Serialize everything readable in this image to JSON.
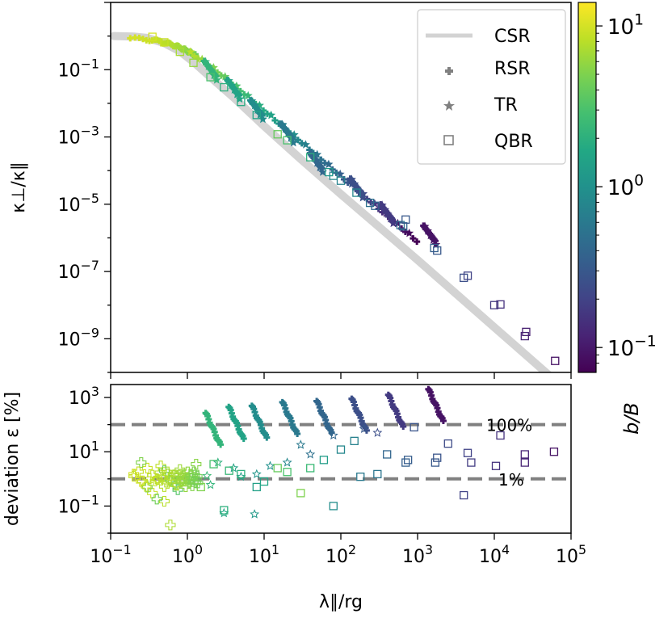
{
  "chart_data": [
    {
      "type": "scatter",
      "xscale": "log",
      "yscale": "log",
      "xlim": [
        0.1,
        100000
      ],
      "ylim": [
        1e-10,
        10
      ],
      "ylabel": "κ⊥/κ∥",
      "yticks": [
        {
          "value": 0.1,
          "base": "10",
          "exp": "−1"
        },
        {
          "value": 0.001,
          "base": "10",
          "exp": "−3"
        },
        {
          "value": 1e-05,
          "base": "10",
          "exp": "−5"
        },
        {
          "value": 1e-07,
          "base": "10",
          "exp": "−7"
        },
        {
          "value": 1e-09,
          "base": "10",
          "exp": "−9"
        }
      ],
      "legend": {
        "position": "top-right",
        "entries": [
          {
            "label": "CSR",
            "marker": "line",
            "color": "#d3d3d3"
          },
          {
            "label": "RSR",
            "marker": "plus",
            "color": "#808080"
          },
          {
            "label": "TR",
            "marker": "star",
            "color": "#808080"
          },
          {
            "label": "QBR",
            "marker": "square",
            "color": "#808080"
          }
        ]
      },
      "series": [
        {
          "name": "CSR",
          "kind": "line",
          "color": "#d3d3d3",
          "points": [
            [
              0.11,
              1.0
            ],
            [
              0.2,
              0.97
            ],
            [
              0.3,
              0.88
            ],
            [
              0.5,
              0.62
            ],
            [
              0.8,
              0.35
            ],
            [
              1.2,
              0.17
            ],
            [
              2,
              0.06
            ],
            [
              4,
              0.015
            ],
            [
              10,
              0.0021
            ],
            [
              30,
              0.00022
            ],
            [
              100,
              2e-05
            ],
            [
              1000,
              2.2e-07
            ],
            [
              10000,
              2.2e-09
            ],
            [
              100000,
              2.2e-11
            ]
          ]
        },
        {
          "name": "QBR",
          "kind": "scatter",
          "marker": "square",
          "points": [
            {
              "x": 0.35,
              "y": 0.95,
              "b": 10
            },
            {
              "x": 0.5,
              "y": 0.65,
              "b": 9
            },
            {
              "x": 0.8,
              "y": 0.34,
              "b": 7
            },
            {
              "x": 1.2,
              "y": 0.16,
              "b": 6
            },
            {
              "x": 2.0,
              "y": 0.06,
              "b": 3
            },
            {
              "x": 3.0,
              "y": 0.03,
              "b": 2
            },
            {
              "x": 5.0,
              "y": 0.011,
              "b": 1.8
            },
            {
              "x": 8.0,
              "y": 0.0045,
              "b": 1.5
            },
            {
              "x": 15,
              "y": 0.0012,
              "b": 4
            },
            {
              "x": 20,
              "y": 0.0008,
              "b": 3
            },
            {
              "x": 40,
              "y": 0.00025,
              "b": 2
            },
            {
              "x": 70,
              "y": 9e-05,
              "b": 1.2
            },
            {
              "x": 80,
              "y": 7e-05,
              "b": 0.8
            },
            {
              "x": 100,
              "y": 5e-05,
              "b": 0.7
            },
            {
              "x": 160,
              "y": 2.2e-05,
              "b": 0.8
            },
            {
              "x": 240,
              "y": 1.1e-05,
              "b": 0.5
            },
            {
              "x": 280,
              "y": 9e-06,
              "b": 0.4
            },
            {
              "x": 600,
              "y": 2.4e-06,
              "b": 0.5
            },
            {
              "x": 650,
              "y": 2.2e-06,
              "b": 0.4
            },
            {
              "x": 700,
              "y": 3.5e-06,
              "b": 0.3
            },
            {
              "x": 1650,
              "y": 5e-07,
              "b": 0.35
            },
            {
              "x": 1800,
              "y": 4.2e-07,
              "b": 0.3
            },
            {
              "x": 4000,
              "y": 6.5e-08,
              "b": 0.25
            },
            {
              "x": 4500,
              "y": 7.5e-08,
              "b": 0.2
            },
            {
              "x": 10000,
              "y": 1e-08,
              "b": 0.17
            },
            {
              "x": 12000,
              "y": 1.05e-08,
              "b": 0.15
            },
            {
              "x": 25000,
              "y": 1.2e-09,
              "b": 0.12
            },
            {
              "x": 26000,
              "y": 1.6e-09,
              "b": 0.11
            },
            {
              "x": 62000,
              "y": 2.2e-10,
              "b": 0.09
            }
          ]
        },
        {
          "name": "RSR",
          "kind": "cluster",
          "marker": "plus",
          "clusters": [
            {
              "x": 2.5,
              "y": 0.22,
              "b": 2.2
            },
            {
              "x": 5,
              "y": 0.06,
              "b": 1.5
            },
            {
              "x": 10,
              "y": 0.015,
              "b": 0.9
            },
            {
              "x": 25,
              "y": 0.003,
              "b": 0.6
            },
            {
              "x": 60,
              "y": 0.0004,
              "b": 0.4
            },
            {
              "x": 200,
              "y": 7e-05,
              "b": 0.25
            },
            {
              "x": 500,
              "y": 1.2e-05,
              "b": 0.17
            },
            {
              "x": 1800,
              "y": 2.8e-06,
              "b": 0.09
            }
          ]
        }
      ]
    },
    {
      "type": "scatter",
      "xscale": "log",
      "yscale": "log",
      "xlim": [
        0.1,
        100000
      ],
      "ylim": [
        0.01,
        3000
      ],
      "xlabel": "λ∥/rg",
      "ylabel": "deviation ε [%]",
      "xticks": [
        {
          "value": 0.1,
          "base": "10",
          "exp": "−1"
        },
        {
          "value": 1,
          "base": "10",
          "exp": "0"
        },
        {
          "value": 10,
          "base": "10",
          "exp": "1"
        },
        {
          "value": 100,
          "base": "10",
          "exp": "2"
        },
        {
          "value": 1000,
          "base": "10",
          "exp": "3"
        },
        {
          "value": 10000,
          "base": "10",
          "exp": "4"
        },
        {
          "value": 100000,
          "base": "10",
          "exp": "5"
        }
      ],
      "yticks": [
        {
          "value": 1000,
          "base": "10",
          "exp": "3"
        },
        {
          "value": 10,
          "base": "10",
          "exp": "1"
        },
        {
          "value": 0.1,
          "base": "10",
          "exp": "−1"
        }
      ],
      "hlines": [
        {
          "value": 100,
          "label": "100%"
        },
        {
          "value": 1,
          "label": "1%"
        }
      ],
      "qbr": [
        {
          "x": 0.8,
          "y": 0.9,
          "b": 6
        },
        {
          "x": 1.2,
          "y": 1.2,
          "b": 5
        },
        {
          "x": 1.5,
          "y": 0.5,
          "b": 5
        },
        {
          "x": 2.2,
          "y": 3.5,
          "b": 3
        },
        {
          "x": 3.0,
          "y": 0.07,
          "b": 2
        },
        {
          "x": 3.5,
          "y": 2.0,
          "b": 2.4
        },
        {
          "x": 5,
          "y": 1.5,
          "b": 2
        },
        {
          "x": 8,
          "y": 0.5,
          "b": 1.4
        },
        {
          "x": 10,
          "y": 0.8,
          "b": 1.6
        },
        {
          "x": 15,
          "y": 2.5,
          "b": 4
        },
        {
          "x": 20,
          "y": 1.8,
          "b": 3
        },
        {
          "x": 30,
          "y": 0.3,
          "b": 5
        },
        {
          "x": 40,
          "y": 2.5,
          "b": 2.5
        },
        {
          "x": 60,
          "y": 5,
          "b": 1.3
        },
        {
          "x": 80,
          "y": 0.1,
          "b": 0.9
        },
        {
          "x": 100,
          "y": 12,
          "b": 0.8
        },
        {
          "x": 150,
          "y": 25,
          "b": 0.7
        },
        {
          "x": 180,
          "y": 1.2,
          "b": 0.6
        },
        {
          "x": 300,
          "y": 1.5,
          "b": 0.55
        },
        {
          "x": 400,
          "y": 8,
          "b": 0.4
        },
        {
          "x": 700,
          "y": 4,
          "b": 0.35
        },
        {
          "x": 750,
          "y": 5,
          "b": 0.33
        },
        {
          "x": 900,
          "y": 80,
          "b": 0.28
        },
        {
          "x": 1700,
          "y": 4,
          "b": 0.3
        },
        {
          "x": 1800,
          "y": 6,
          "b": 0.28
        },
        {
          "x": 2500,
          "y": 20,
          "b": 0.23
        },
        {
          "x": 4000,
          "y": 0.25,
          "b": 0.2
        },
        {
          "x": 4500,
          "y": 9,
          "b": 0.2
        },
        {
          "x": 5000,
          "y": 4,
          "b": 0.18
        },
        {
          "x": 10500,
          "y": 3,
          "b": 0.15
        },
        {
          "x": 12000,
          "y": 40,
          "b": 0.15
        },
        {
          "x": 25000,
          "y": 4,
          "b": 0.12
        },
        {
          "x": 25000,
          "y": 8,
          "b": 0.12
        },
        {
          "x": 60000,
          "y": 10,
          "b": 0.09
        }
      ],
      "tr": [
        {
          "x": 1.8,
          "y": 1.3,
          "b": 2.5
        },
        {
          "x": 2.0,
          "y": 0.6,
          "b": 2.2
        },
        {
          "x": 2.5,
          "y": 4,
          "b": 2
        },
        {
          "x": 3.0,
          "y": 0.055,
          "b": 1.6
        },
        {
          "x": 4.0,
          "y": 2.5,
          "b": 1.5
        },
        {
          "x": 5.0,
          "y": 1.2,
          "b": 1.4
        },
        {
          "x": 7.5,
          "y": 0.05,
          "b": 1.2
        },
        {
          "x": 8.0,
          "y": 1.5,
          "b": 1.1
        },
        {
          "x": 12,
          "y": 3,
          "b": 1.0
        },
        {
          "x": 20,
          "y": 4,
          "b": 0.8
        },
        {
          "x": 30,
          "y": 18,
          "b": 0.6
        },
        {
          "x": 40,
          "y": 8,
          "b": 0.5
        },
        {
          "x": 80,
          "y": 40,
          "b": 0.4
        },
        {
          "x": 200,
          "y": 70,
          "b": 0.3
        },
        {
          "x": 300,
          "y": 50,
          "b": 0.25
        }
      ],
      "rsr": [
        {
          "x": 2.5,
          "y": 120,
          "b": 2.2
        },
        {
          "x": 5,
          "y": 200,
          "b": 1.5
        },
        {
          "x": 10,
          "y": 220,
          "b": 0.9
        },
        {
          "x": 25,
          "y": 300,
          "b": 0.6
        },
        {
          "x": 70,
          "y": 330,
          "b": 0.4
        },
        {
          "x": 200,
          "y": 400,
          "b": 0.25
        },
        {
          "x": 600,
          "y": 560,
          "b": 0.17
        },
        {
          "x": 2000,
          "y": 900,
          "b": 0.09
        }
      ],
      "scatter_near_one": [
        {
          "x": 0.2,
          "y": 1.5
        },
        {
          "x": 0.25,
          "y": 0.8
        },
        {
          "x": 0.3,
          "y": 2.5
        },
        {
          "x": 0.35,
          "y": 0.3
        },
        {
          "x": 0.4,
          "y": 1.0
        },
        {
          "x": 0.45,
          "y": 3.0
        },
        {
          "x": 0.5,
          "y": 0.15
        },
        {
          "x": 0.55,
          "y": 1.8
        },
        {
          "x": 0.6,
          "y": 0.02
        },
        {
          "x": 0.7,
          "y": 0.6
        },
        {
          "x": 0.8,
          "y": 2.2
        },
        {
          "x": 0.9,
          "y": 0.9
        },
        {
          "x": 1.1,
          "y": 1.5
        },
        {
          "x": 1.3,
          "y": 3.5
        },
        {
          "x": 0.25,
          "y": 4.0
        },
        {
          "x": 0.3,
          "y": 0.5
        },
        {
          "x": 0.4,
          "y": 0.18
        },
        {
          "x": 0.5,
          "y": 2.0
        },
        {
          "x": 0.6,
          "y": 0.9
        },
        {
          "x": 0.75,
          "y": 0.4
        }
      ]
    },
    {
      "type": "colorbar",
      "label": "b/B",
      "scale": "log",
      "range": [
        0.07,
        14
      ],
      "colormap": "viridis",
      "ticks": [
        {
          "value": 10,
          "base": "10",
          "exp": "1"
        },
        {
          "value": 1,
          "base": "10",
          "exp": "0"
        },
        {
          "value": 0.1,
          "base": "10",
          "exp": "−1"
        }
      ]
    }
  ]
}
